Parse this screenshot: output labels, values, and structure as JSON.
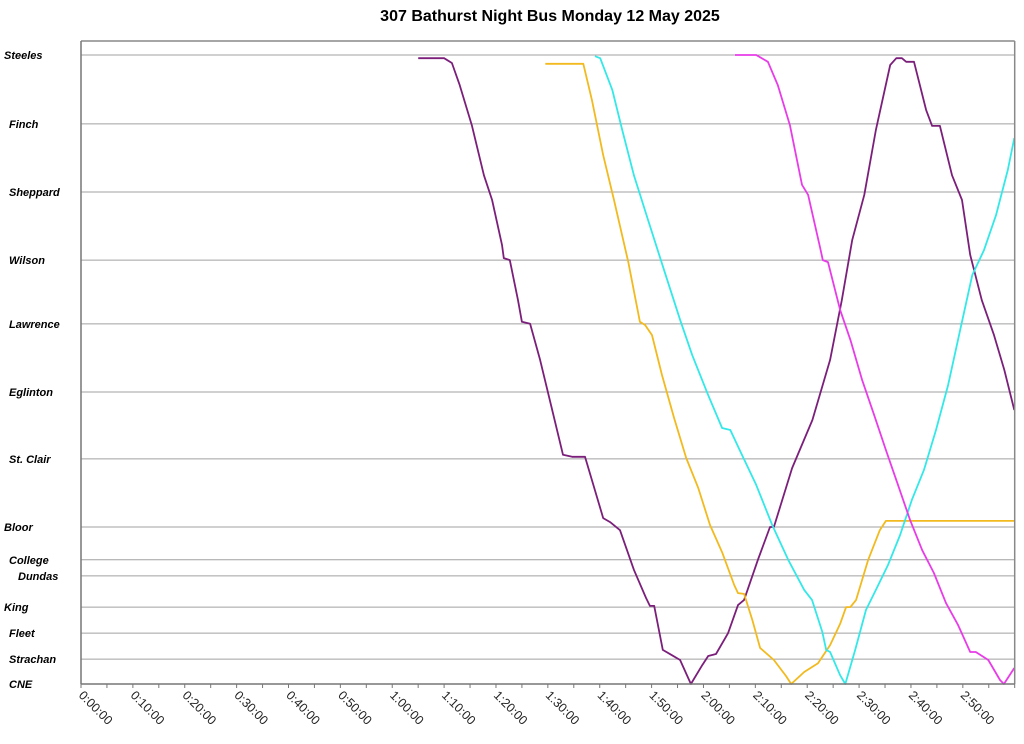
{
  "chart_data": {
    "type": "line",
    "title": "307 Bathurst Night Bus Monday 12 May 2025",
    "xlabel": "",
    "ylabel": "",
    "xlim": [
      "0:00:00",
      "3:00:00"
    ],
    "ylim": [
      0,
      16.05
    ],
    "grid": "horizontal at stations",
    "legend": "none",
    "x_tick_labels": [
      "0:00:00",
      "0:10:00",
      "0:20:00",
      "0:30:00",
      "0:40:00",
      "0:50:00",
      "1:00:00",
      "1:10:00",
      "1:20:00",
      "1:30:00",
      "1:40:00",
      "1:50:00",
      "2:00:00",
      "2:10:00",
      "2:20:00",
      "2:30:00",
      "2:40:00",
      "2:50:00"
    ],
    "stations": [
      {
        "name": "Steeles",
        "distance": 15.7
      },
      {
        "name": "Finch",
        "distance": 13.98
      },
      {
        "name": "Sheppard",
        "distance": 12.28
      },
      {
        "name": "Wilson",
        "distance": 10.58
      },
      {
        "name": "Lawrence",
        "distance": 8.99
      },
      {
        "name": "Eglinton",
        "distance": 7.29
      },
      {
        "name": "St. Clair",
        "distance": 5.62
      },
      {
        "name": "Bloor",
        "distance": 3.92
      },
      {
        "name": "College",
        "distance": 3.1
      },
      {
        "name": "Dundas",
        "distance": 2.7
      },
      {
        "name": "King",
        "distance": 1.92
      },
      {
        "name": "Fleet",
        "distance": 1.27
      },
      {
        "name": "Strachan",
        "distance": 0.62
      },
      {
        "name": "CNE",
        "distance": 0
      }
    ],
    "series": [
      {
        "color": "#7B1F7B",
        "points": [
          [
            "1:05:00",
            15.62
          ],
          [
            "1:10:00",
            15.62
          ],
          [
            "1:11:30",
            15.5
          ],
          [
            "1:13:00",
            14.95
          ],
          [
            "1:15:20",
            13.95
          ],
          [
            "1:17:40",
            12.7
          ],
          [
            "1:19:15",
            12.08
          ],
          [
            "1:21:10",
            10.96
          ],
          [
            "1:21:30",
            10.63
          ],
          [
            "1:22:40",
            10.58
          ],
          [
            "1:24:15",
            9.58
          ],
          [
            "1:25:00",
            9.04
          ],
          [
            "1:26:35",
            8.99
          ],
          [
            "1:28:30",
            8.09
          ],
          [
            "1:30:50",
            6.84
          ],
          [
            "1:32:55",
            5.72
          ],
          [
            "1:34:40",
            5.67
          ],
          [
            "1:37:10",
            5.67
          ],
          [
            "1:40:40",
            4.14
          ],
          [
            "1:42:00",
            4.04
          ],
          [
            "1:43:55",
            3.84
          ],
          [
            "1:46:35",
            2.85
          ],
          [
            "1:48:55",
            2.15
          ],
          [
            "1:49:40",
            1.95
          ],
          [
            "1:50:30",
            1.95
          ],
          [
            "1:52:10",
            0.85
          ],
          [
            "1:53:55",
            0.72
          ],
          [
            "1:55:30",
            0.6
          ],
          [
            "1:57:35",
            0
          ],
          [
            "1:59:45",
            0.47
          ],
          [
            "2:00:55",
            0.7
          ],
          [
            "2:02:25",
            0.75
          ],
          [
            "2:04:45",
            1.27
          ],
          [
            "2:06:40",
            1.97
          ],
          [
            "2:07:50",
            2.1
          ],
          [
            "2:10:30",
            3.1
          ],
          [
            "2:12:50",
            3.92
          ],
          [
            "2:13:35",
            3.92
          ],
          [
            "2:17:05",
            5.39
          ],
          [
            "2:21:00",
            6.59
          ],
          [
            "2:24:25",
            8.09
          ],
          [
            "2:26:40",
            9.58
          ],
          [
            "2:28:40",
            11.08
          ],
          [
            "2:31:00",
            12.21
          ],
          [
            "2:33:15",
            13.83
          ],
          [
            "2:36:00",
            15.45
          ],
          [
            "2:37:10",
            15.62
          ],
          [
            "2:38:15",
            15.62
          ],
          [
            "2:39:05",
            15.53
          ],
          [
            "2:40:35",
            15.53
          ],
          [
            "2:42:55",
            14.33
          ],
          [
            "2:44:05",
            13.93
          ],
          [
            "2:45:35",
            13.93
          ],
          [
            "2:47:55",
            12.7
          ],
          [
            "2:49:50",
            12.08
          ],
          [
            "2:51:25",
            10.71
          ],
          [
            "2:53:40",
            9.58
          ],
          [
            "2:56:00",
            8.71
          ],
          [
            "2:58:00",
            7.84
          ],
          [
            "2:59:55",
            6.84
          ]
        ]
      },
      {
        "color": "#F2BA1E",
        "points": [
          [
            "1:29:30",
            15.48
          ],
          [
            "1:36:50",
            15.48
          ],
          [
            "1:38:30",
            14.58
          ],
          [
            "1:40:40",
            13.2
          ],
          [
            "1:42:45",
            12.08
          ],
          [
            "1:45:30",
            10.53
          ],
          [
            "1:47:45",
            9.04
          ],
          [
            "1:48:45",
            8.96
          ],
          [
            "1:50:05",
            8.71
          ],
          [
            "1:52:00",
            7.71
          ],
          [
            "1:54:20",
            6.64
          ],
          [
            "1:56:40",
            5.64
          ],
          [
            "1:59:00",
            4.89
          ],
          [
            "2:01:15",
            3.97
          ],
          [
            "2:03:35",
            3.29
          ],
          [
            "2:05:55",
            2.47
          ],
          [
            "2:06:40",
            2.27
          ],
          [
            "2:07:50",
            2.25
          ],
          [
            "2:09:25",
            1.6
          ],
          [
            "2:10:55",
            0.9
          ],
          [
            "2:13:35",
            0.6
          ],
          [
            "2:15:55",
            0.2
          ],
          [
            "2:16:55",
            0
          ],
          [
            "2:19:25",
            0.3
          ],
          [
            "2:22:05",
            0.52
          ],
          [
            "2:24:25",
            0.97
          ],
          [
            "2:26:20",
            1.5
          ],
          [
            "2:27:30",
            1.92
          ],
          [
            "2:28:20",
            1.92
          ],
          [
            "2:29:25",
            2.1
          ],
          [
            "2:31:45",
            3.1
          ],
          [
            "2:34:00",
            3.84
          ],
          [
            "2:35:10",
            4.07
          ],
          [
            "3:00:00",
            4.07
          ]
        ]
      },
      {
        "color": "#33E8E8",
        "points": [
          [
            "1:39:05",
            15.67
          ],
          [
            "1:40:05",
            15.62
          ],
          [
            "1:42:25",
            14.83
          ],
          [
            "1:44:20",
            13.83
          ],
          [
            "1:46:35",
            12.7
          ],
          [
            "1:49:20",
            11.58
          ],
          [
            "1:52:25",
            10.33
          ],
          [
            "1:55:30",
            9.09
          ],
          [
            "1:57:50",
            8.21
          ],
          [
            "2:00:55",
            7.21
          ],
          [
            "2:03:35",
            6.39
          ],
          [
            "2:05:10",
            6.34
          ],
          [
            "2:07:25",
            5.72
          ],
          [
            "2:10:10",
            4.97
          ],
          [
            "2:13:15",
            3.97
          ],
          [
            "2:16:20",
            3.1
          ],
          [
            "2:19:25",
            2.35
          ],
          [
            "2:20:55",
            2.1
          ],
          [
            "2:22:55",
            1.3
          ],
          [
            "2:23:40",
            0.85
          ],
          [
            "2:24:25",
            0.8
          ],
          [
            "2:26:20",
            0.22
          ],
          [
            "2:27:20",
            0
          ],
          [
            "2:29:15",
            0.85
          ],
          [
            "2:31:20",
            1.85
          ],
          [
            "2:33:15",
            2.35
          ],
          [
            "2:35:35",
            2.97
          ],
          [
            "2:37:55",
            3.72
          ],
          [
            "2:40:10",
            4.59
          ],
          [
            "2:42:30",
            5.34
          ],
          [
            "2:44:50",
            6.34
          ],
          [
            "2:47:10",
            7.46
          ],
          [
            "2:49:30",
            8.84
          ],
          [
            "2:51:50",
            10.21
          ],
          [
            "2:54:05",
            10.83
          ],
          [
            "2:56:25",
            11.71
          ],
          [
            "2:58:40",
            12.83
          ],
          [
            "2:59:55",
            13.63
          ]
        ]
      },
      {
        "color": "#E83CE8",
        "points": [
          [
            "2:06:05",
            15.7
          ],
          [
            "2:10:10",
            15.7
          ],
          [
            "2:12:25",
            15.53
          ],
          [
            "2:14:20",
            14.95
          ],
          [
            "2:16:40",
            13.95
          ],
          [
            "2:19:00",
            12.46
          ],
          [
            "2:20:10",
            12.21
          ],
          [
            "2:22:30",
            10.88
          ],
          [
            "2:23:00",
            10.58
          ],
          [
            "2:24:00",
            10.53
          ],
          [
            "2:26:20",
            9.34
          ],
          [
            "2:28:20",
            8.59
          ],
          [
            "2:30:35",
            7.59
          ],
          [
            "2:32:55",
            6.71
          ],
          [
            "2:35:10",
            5.84
          ],
          [
            "2:37:30",
            4.97
          ],
          [
            "2:39:50",
            4.09
          ],
          [
            "2:42:10",
            3.34
          ],
          [
            "2:44:25",
            2.77
          ],
          [
            "2:46:45",
            2.02
          ],
          [
            "2:49:05",
            1.47
          ],
          [
            "2:51:25",
            0.8
          ],
          [
            "2:52:30",
            0.8
          ],
          [
            "2:54:55",
            0.6
          ],
          [
            "2:57:10",
            0.1
          ],
          [
            "2:57:55",
            0
          ],
          [
            "2:59:55",
            0.4
          ]
        ]
      }
    ]
  }
}
